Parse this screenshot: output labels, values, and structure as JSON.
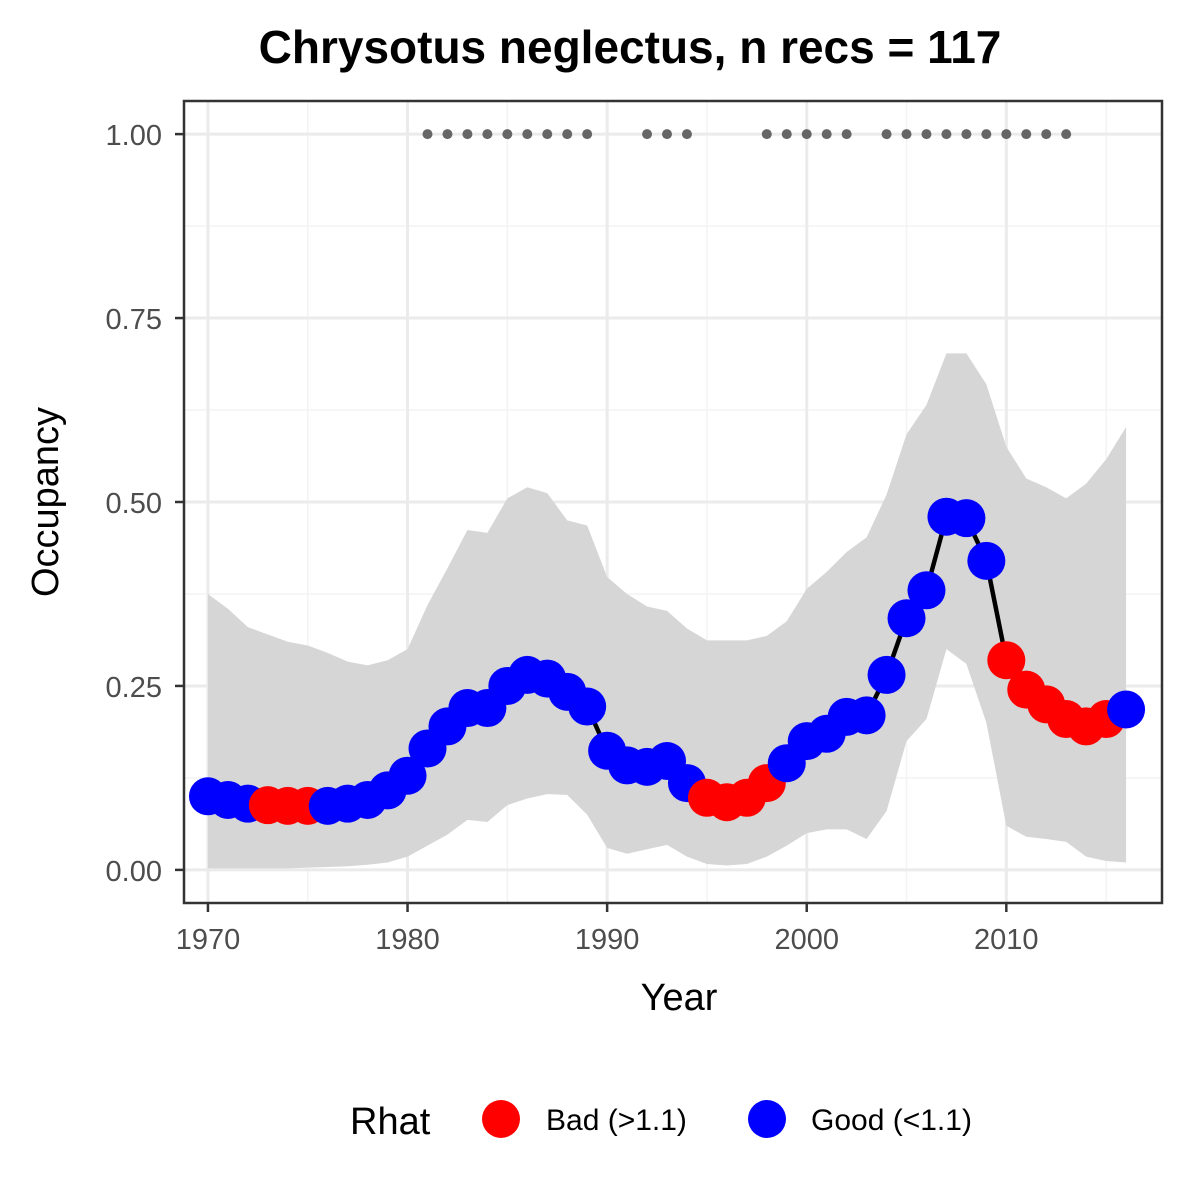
{
  "chart_data": {
    "type": "line",
    "title": "Chrysotus neglectus, n recs = 117",
    "xlabel": "Year",
    "ylabel": "Occupancy",
    "xlim": [
      1968.8,
      2017.8
    ],
    "ylim": [
      -0.045,
      1.045
    ],
    "x_ticks": [
      1970,
      1980,
      1990,
      2000,
      2010
    ],
    "x_tick_labels": [
      "1970",
      "1980",
      "1990",
      "2000",
      "2010"
    ],
    "y_ticks": [
      0,
      0.25,
      0.5,
      0.75,
      1.0
    ],
    "y_tick_labels": [
      "0.00",
      "0.25",
      "0.50",
      "0.75",
      "1.00"
    ],
    "grid": true,
    "legend": {
      "title": "Rhat",
      "position": "bottom",
      "entries": [
        {
          "label": "Bad (>1.1)",
          "color": "#ff0000"
        },
        {
          "label": "Good (<1.1)",
          "color": "#0000ff"
        }
      ]
    },
    "series": [
      {
        "years": [
          1970,
          1971,
          1972,
          1973,
          1974,
          1975,
          1976,
          1977,
          1978,
          1979,
          1980,
          1981,
          1982,
          1983,
          1984,
          1985,
          1986,
          1987,
          1988,
          1989,
          1990,
          1991,
          1992,
          1993,
          1994,
          1995,
          1996,
          1997,
          1998,
          1999,
          2000,
          2001,
          2002,
          2003,
          2004,
          2005,
          2006,
          2007,
          2008,
          2009,
          2010,
          2011,
          2012,
          2013,
          2014,
          2015,
          2016
        ],
        "mean": [
          0.1,
          0.095,
          0.09,
          0.088,
          0.087,
          0.087,
          0.087,
          0.09,
          0.095,
          0.108,
          0.128,
          0.165,
          0.195,
          0.22,
          0.22,
          0.25,
          0.265,
          0.26,
          0.242,
          0.222,
          0.162,
          0.142,
          0.14,
          0.148,
          0.118,
          0.098,
          0.092,
          0.098,
          0.118,
          0.145,
          0.175,
          0.185,
          0.208,
          0.21,
          0.265,
          0.342,
          0.38,
          0.48,
          0.478,
          0.42,
          0.285,
          0.245,
          0.225,
          0.205,
          0.195,
          0.205,
          0.218
        ],
        "lower": [
          0.002,
          0.002,
          0.002,
          0.002,
          0.002,
          0.003,
          0.004,
          0.005,
          0.007,
          0.01,
          0.018,
          0.033,
          0.048,
          0.068,
          0.065,
          0.088,
          0.097,
          0.103,
          0.102,
          0.075,
          0.03,
          0.022,
          0.028,
          0.034,
          0.018,
          0.008,
          0.006,
          0.008,
          0.018,
          0.033,
          0.05,
          0.055,
          0.055,
          0.042,
          0.08,
          0.175,
          0.205,
          0.3,
          0.28,
          0.2,
          0.06,
          0.045,
          0.042,
          0.038,
          0.018,
          0.012,
          0.01
        ],
        "upper": [
          0.375,
          0.355,
          0.33,
          0.32,
          0.31,
          0.305,
          0.295,
          0.283,
          0.278,
          0.285,
          0.3,
          0.36,
          0.41,
          0.462,
          0.458,
          0.505,
          0.52,
          0.512,
          0.475,
          0.468,
          0.398,
          0.375,
          0.358,
          0.352,
          0.328,
          0.312,
          0.312,
          0.312,
          0.318,
          0.338,
          0.382,
          0.405,
          0.432,
          0.452,
          0.51,
          0.592,
          0.632,
          0.702,
          0.702,
          0.66,
          0.575,
          0.532,
          0.52,
          0.505,
          0.525,
          0.558,
          0.602
        ],
        "rhat": [
          "Good",
          "Good",
          "Good",
          "Bad",
          "Bad",
          "Bad",
          "Good",
          "Good",
          "Good",
          "Good",
          "Good",
          "Good",
          "Good",
          "Good",
          "Good",
          "Good",
          "Good",
          "Good",
          "Good",
          "Good",
          "Good",
          "Good",
          "Good",
          "Good",
          "Good",
          "Bad",
          "Bad",
          "Bad",
          "Bad",
          "Good",
          "Good",
          "Good",
          "Good",
          "Good",
          "Good",
          "Good",
          "Good",
          "Good",
          "Good",
          "Good",
          "Bad",
          "Bad",
          "Bad",
          "Bad",
          "Bad",
          "Bad",
          "Good"
        ]
      }
    ],
    "record_years": [
      1981,
      1982,
      1983,
      1984,
      1985,
      1986,
      1987,
      1988,
      1989,
      1992,
      1993,
      1994,
      1998,
      1999,
      2000,
      2001,
      2002,
      2004,
      2005,
      2006,
      2007,
      2008,
      2009,
      2010,
      2011,
      2012,
      2013
    ],
    "record_marker_y": 1.0,
    "colors": {
      "ribbon": "#d6d6d6",
      "line": "#000000",
      "bad": "#ff0000",
      "good": "#0000ff",
      "record_marker": "#666666",
      "grid_major": "#ebebeb",
      "grid_minor": "#f3f3f3",
      "panel_border": "#333333"
    }
  }
}
